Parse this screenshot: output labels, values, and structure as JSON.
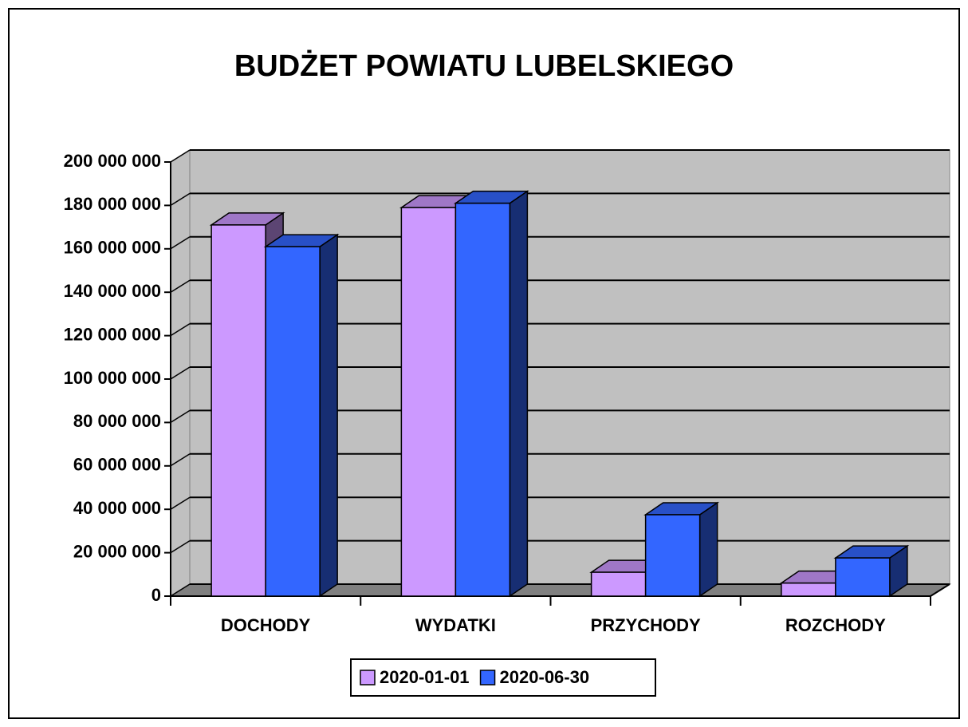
{
  "chart_data": {
    "type": "bar3d",
    "title": "BUDŻET POWIATU LUBELSKIEGO",
    "categories": [
      "DOCHODY",
      "WYDATKI",
      "PRZYCHODY",
      "ROZCHODY"
    ],
    "series": [
      {
        "name": "2020-01-01",
        "color": "#cc99ff",
        "values": [
          171000000,
          179000000,
          11000000,
          6000000
        ]
      },
      {
        "name": "2020-06-30",
        "color": "#3366ff",
        "values": [
          161000000,
          181000000,
          37500000,
          17600000
        ]
      }
    ],
    "ylim": [
      0,
      200000000
    ],
    "yticks": [
      0,
      {
        "value": 20000000,
        "label": "20 000 000"
      },
      {
        "value": 40000000,
        "label": "40 000 000"
      },
      {
        "value": 60000000,
        "label": "60 000 000"
      },
      {
        "value": 80000000,
        "label": "80 000 000"
      },
      {
        "value": 100000000,
        "label": "100 000 000"
      },
      {
        "value": 120000000,
        "label": "120 000 000"
      },
      {
        "value": 140000000,
        "label": "140 000 000"
      },
      {
        "value": 160000000,
        "label": "160 000 000"
      },
      {
        "value": 180000000,
        "label": "180 000 000"
      },
      {
        "value": 200000000,
        "label": "200 000 000"
      }
    ],
    "grid": true,
    "legend": "bottom"
  }
}
